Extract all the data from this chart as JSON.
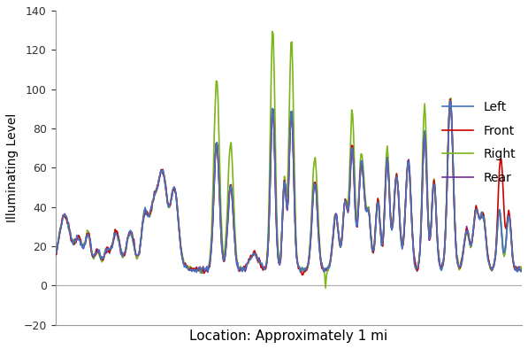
{
  "title": "",
  "xlabel": "Location: Approximately 1 mi",
  "ylabel": "Illuminating Level",
  "ylim": [
    -20,
    140
  ],
  "yticks": [
    -20,
    0,
    20,
    40,
    60,
    80,
    100,
    120,
    140
  ],
  "legend_labels": [
    "Left",
    "Front",
    "Right",
    "Rear"
  ],
  "colors": {
    "Left": "#4472C4",
    "Front": "#CC0000",
    "Right": "#7CB518",
    "Rear": "#7030A0"
  },
  "linewidth": 1.2,
  "background_color": "#FFFFFF"
}
